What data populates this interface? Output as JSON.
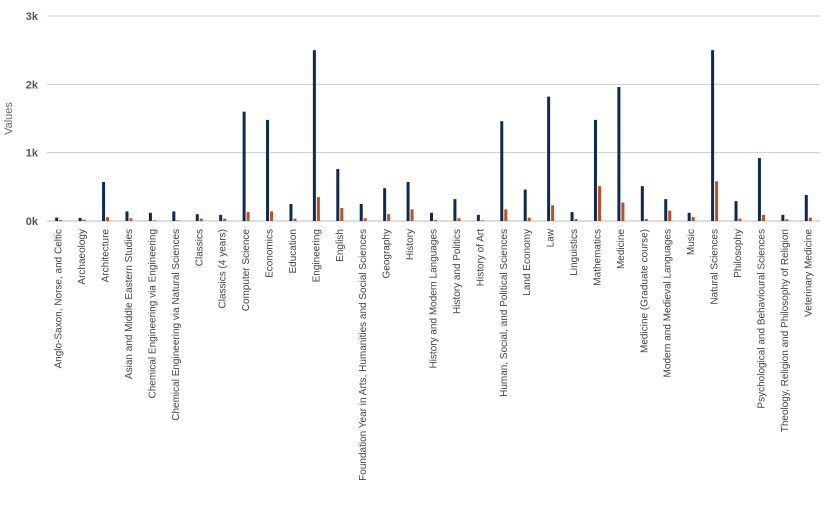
{
  "chart_data": {
    "type": "bar",
    "ylabel": "Values",
    "ylim": [
      0,
      3000
    ],
    "yticks": [
      0,
      1000,
      2000,
      3000
    ],
    "ytick_labels": [
      "0k",
      "1k",
      "2k",
      "3k"
    ],
    "grid": true,
    "categories": [
      "Anglo-Saxon, Norse, and Celtic",
      "Archaeology",
      "Architecture",
      "Asian and Middle Eastern Studies",
      "Chemical Engineering via Engineering",
      "Chemical Engineering via Natural Sciences",
      "Classics",
      "Classics (4 years)",
      "Computer Science",
      "Economics",
      "Education",
      "Engineering",
      "English",
      "Foundation Year in Arts, Humanities and Social Sciences",
      "Geography",
      "History",
      "History and Modern Languages",
      "History and Politics",
      "History of Art",
      "Human, Social, and Political Sciences",
      "Land Economy",
      "Law",
      "Linguistics",
      "Mathematics",
      "Medicine",
      "Medicine (Graduate course)",
      "Modern and Medieval Languages",
      "Music",
      "Natural Sciences",
      "Philosophy",
      "Psychological and Behavioural Sciences",
      "Theology, Religion and Philosophy of Religion",
      "Veterinary Medicine"
    ],
    "series": [
      {
        "color": "#0d2b52",
        "values": [
          50,
          45,
          570,
          140,
          120,
          140,
          100,
          90,
          1600,
          1480,
          250,
          2500,
          760,
          250,
          480,
          570,
          120,
          320,
          90,
          1460,
          460,
          1820,
          130,
          1480,
          1960,
          510,
          320,
          120,
          2500,
          290,
          920,
          90,
          380
        ]
      },
      {
        "color": "#c0501f",
        "values": [
          15,
          20,
          55,
          40,
          10,
          10,
          35,
          35,
          130,
          140,
          35,
          350,
          190,
          40,
          100,
          170,
          15,
          40,
          10,
          170,
          50,
          230,
          30,
          510,
          270,
          30,
          150,
          60,
          580,
          35,
          90,
          25,
          50
        ]
      }
    ]
  }
}
